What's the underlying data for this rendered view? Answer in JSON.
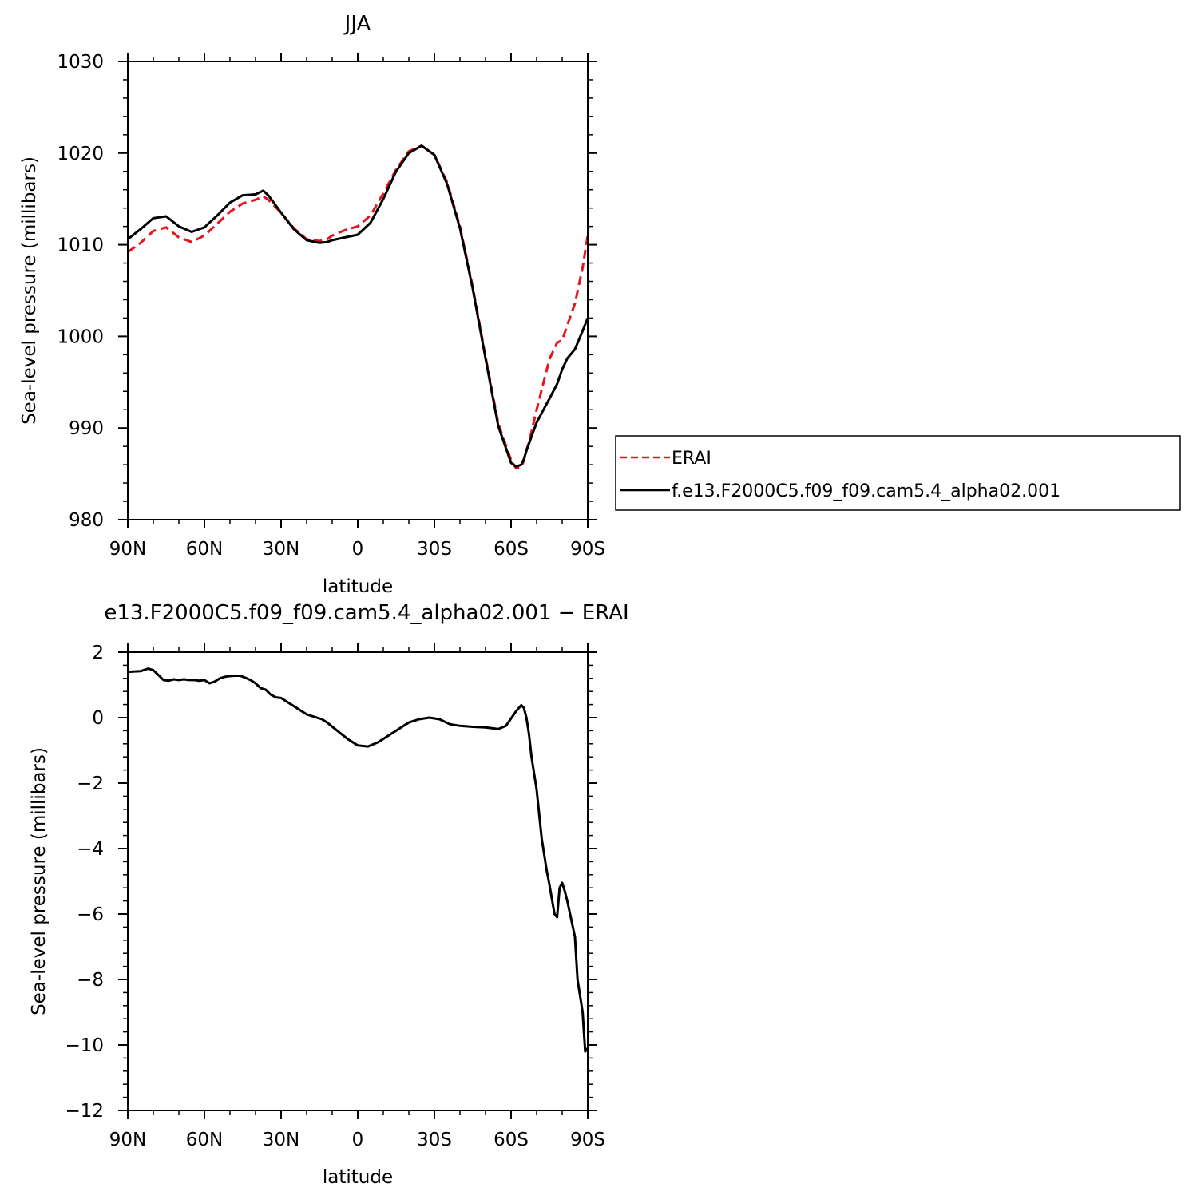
{
  "colors": {
    "erai": "#e8141b",
    "model": "#000000",
    "axis": "#000000",
    "background": "#ffffff"
  },
  "chart_data": [
    {
      "type": "line",
      "title": "JJA",
      "xlabel": "latitude",
      "ylabel": "Sea-level pressure (millibars)",
      "xlim": [
        -90,
        90
      ],
      "ylim": [
        980,
        1030
      ],
      "x_ticks": [
        -90,
        -60,
        -30,
        0,
        30,
        60,
        90
      ],
      "x_tick_labels": [
        "90N",
        "60N",
        "30N",
        "0",
        "30S",
        "60S",
        "90S"
      ],
      "y_ticks": [
        980,
        990,
        1000,
        1010,
        1020,
        1030
      ],
      "y_tick_labels": [
        "980",
        "990",
        "1000",
        "1010",
        "1020",
        "1030"
      ],
      "grid": false,
      "legend_position": "right, outside plot",
      "legend": [
        "ERAI",
        "f.e13.F2000C5.f09_f09.cam5.4_alpha02.001"
      ],
      "x": [
        -90,
        -85,
        -80,
        -75,
        -70,
        -65,
        -60,
        -55,
        -50,
        -45,
        -40,
        -37,
        -35,
        -30,
        -25,
        -20,
        -15,
        -12,
        -10,
        -5,
        0,
        5,
        10,
        15,
        20,
        25,
        30,
        35,
        40,
        45,
        50,
        55,
        60,
        62,
        64,
        65,
        66,
        67,
        70,
        75,
        78,
        80,
        82,
        85,
        88,
        90
      ],
      "series": [
        {
          "name": "ERAI",
          "style": "dashed",
          "values": [
            1009.2,
            1010.2,
            1011.5,
            1011.9,
            1010.8,
            1010.3,
            1011.0,
            1012.3,
            1013.6,
            1014.5,
            1014.9,
            1015.3,
            1014.9,
            1013.5,
            1011.8,
            1010.6,
            1010.4,
            1010.6,
            1011.0,
            1011.6,
            1012.0,
            1013.2,
            1015.6,
            1018.2,
            1020.2,
            1020.8,
            1019.8,
            1016.8,
            1012.0,
            1005.4,
            997.8,
            990.5,
            986.5,
            985.6,
            985.8,
            986.4,
            987.6,
            988.4,
            992.0,
            997.5,
            999.3,
            999.6,
            1001.2,
            1003.6,
            1007.5,
            1011.0
          ]
        },
        {
          "name": "f.e13.F2000C5.f09_f09.cam5.4_alpha02.001",
          "style": "solid",
          "values": [
            1010.6,
            1011.7,
            1012.9,
            1013.1,
            1012.0,
            1011.4,
            1011.9,
            1013.2,
            1014.6,
            1015.4,
            1015.5,
            1015.9,
            1015.4,
            1013.5,
            1011.7,
            1010.5,
            1010.2,
            1010.3,
            1010.5,
            1010.8,
            1011.1,
            1012.4,
            1015.0,
            1018.0,
            1020.0,
            1020.8,
            1019.8,
            1016.6,
            1011.8,
            1005.2,
            997.6,
            990.2,
            986.2,
            985.8,
            986.0,
            986.6,
            987.5,
            988.3,
            990.6,
            993.2,
            994.8,
            996.4,
            997.6,
            998.6,
            1000.6,
            1002.0
          ]
        }
      ]
    },
    {
      "type": "line",
      "title": "e13.F2000C5.f09_f09.cam5.4_alpha02.001 − ERAI",
      "xlabel": "latitude",
      "ylabel": "Sea-level pressure (millibars)",
      "xlim": [
        -90,
        90
      ],
      "ylim": [
        -12,
        2
      ],
      "x_ticks": [
        -90,
        -60,
        -30,
        0,
        30,
        60,
        90
      ],
      "x_tick_labels": [
        "90N",
        "60N",
        "30N",
        "0",
        "30S",
        "60S",
        "90S"
      ],
      "y_ticks": [
        -12,
        -10,
        -8,
        -6,
        -4,
        -2,
        0,
        2
      ],
      "y_tick_labels": [
        "−12",
        "−10",
        "−8",
        "−6",
        "−4",
        "−2",
        "0",
        "2"
      ],
      "grid": false,
      "x": [
        -90,
        -85,
        -82,
        -80,
        -78,
        -76,
        -74,
        -72,
        -70,
        -68,
        -66,
        -64,
        -62,
        -60,
        -58,
        -56,
        -54,
        -52,
        -50,
        -48,
        -46,
        -44,
        -42,
        -40,
        -38,
        -36,
        -34,
        -32,
        -30,
        -28,
        -26,
        -24,
        -20,
        -16,
        -14,
        -12,
        -8,
        -4,
        0,
        4,
        8,
        12,
        16,
        20,
        24,
        28,
        32,
        36,
        40,
        45,
        50,
        55,
        58,
        62,
        64,
        65,
        66,
        67,
        68,
        70,
        72,
        74,
        75,
        77,
        78,
        79,
        80,
        81,
        82,
        85,
        86,
        88,
        89,
        90
      ],
      "series": [
        {
          "name": "",
          "style": "solid",
          "values": [
            1.4,
            1.42,
            1.5,
            1.45,
            1.3,
            1.15,
            1.13,
            1.17,
            1.15,
            1.17,
            1.15,
            1.15,
            1.13,
            1.15,
            1.05,
            1.1,
            1.2,
            1.25,
            1.27,
            1.28,
            1.28,
            1.22,
            1.15,
            1.05,
            0.9,
            0.85,
            0.7,
            0.62,
            0.6,
            0.5,
            0.4,
            0.3,
            0.1,
            0.0,
            -0.05,
            -0.15,
            -0.4,
            -0.65,
            -0.85,
            -0.88,
            -0.75,
            -0.55,
            -0.35,
            -0.15,
            -0.05,
            0.0,
            -0.05,
            -0.2,
            -0.25,
            -0.28,
            -0.3,
            -0.35,
            -0.25,
            0.2,
            0.38,
            0.3,
            0.0,
            -0.5,
            -1.2,
            -2.2,
            -3.7,
            -4.7,
            -5.1,
            -6.0,
            -6.1,
            -5.2,
            -5.05,
            -5.3,
            -5.6,
            -6.7,
            -8.0,
            -9.0,
            -10.2,
            -10.1
          ]
        }
      ]
    }
  ]
}
